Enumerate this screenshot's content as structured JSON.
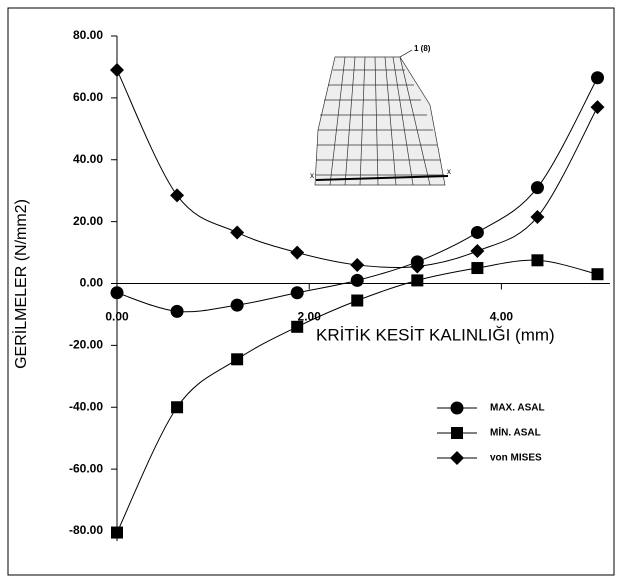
{
  "chart_data": {
    "type": "line",
    "x_label": "KRİTİK KESİT KALINLIĞI (mm)",
    "y_label": "GERİLMELER (N/mm2)",
    "x": [
      0,
      0.625,
      1.25,
      1.875,
      2.5,
      3.125,
      3.75,
      4.375,
      5.0
    ],
    "series": [
      {
        "name": "MAX. ASAL",
        "color": "#000000",
        "marker": "circle",
        "values": [
          -3,
          -9,
          -7,
          -3,
          1,
          7,
          16.5,
          31,
          66.5
        ]
      },
      {
        "name": "MİN. ASAL",
        "color": "#000000",
        "marker": "square",
        "values": [
          -80.5,
          -40,
          -24.5,
          -14,
          -5.5,
          1,
          5,
          7.5,
          3
        ]
      },
      {
        "name": "von MISES",
        "color": "#000000",
        "marker": "diamond",
        "values": [
          69,
          28.5,
          16.5,
          10,
          6,
          5.5,
          10.5,
          21.5,
          57
        ]
      }
    ],
    "xlim": [
      0,
      5.13
    ],
    "xticks": [
      {
        "value": 0,
        "label": "0.00"
      },
      {
        "value": 2,
        "label": "2.00"
      },
      {
        "value": 4,
        "label": "4.00"
      }
    ],
    "ylim": [
      -80,
      80
    ],
    "yticks": [
      {
        "value": -80,
        "label": "-80.00"
      },
      {
        "value": -60,
        "label": "-60.00"
      },
      {
        "value": -40,
        "label": "-40.00"
      },
      {
        "value": -20,
        "label": "-20.00"
      },
      {
        "value": 0,
        "label": "0.00"
      },
      {
        "value": 20,
        "label": "20.00"
      },
      {
        "value": 40,
        "label": "40.00"
      },
      {
        "value": 60,
        "label": "60.00"
      },
      {
        "value": 80,
        "label": "80.00"
      }
    ],
    "legend": "lower right",
    "inset_labels": [
      "1 (8)",
      "x",
      "x"
    ]
  }
}
